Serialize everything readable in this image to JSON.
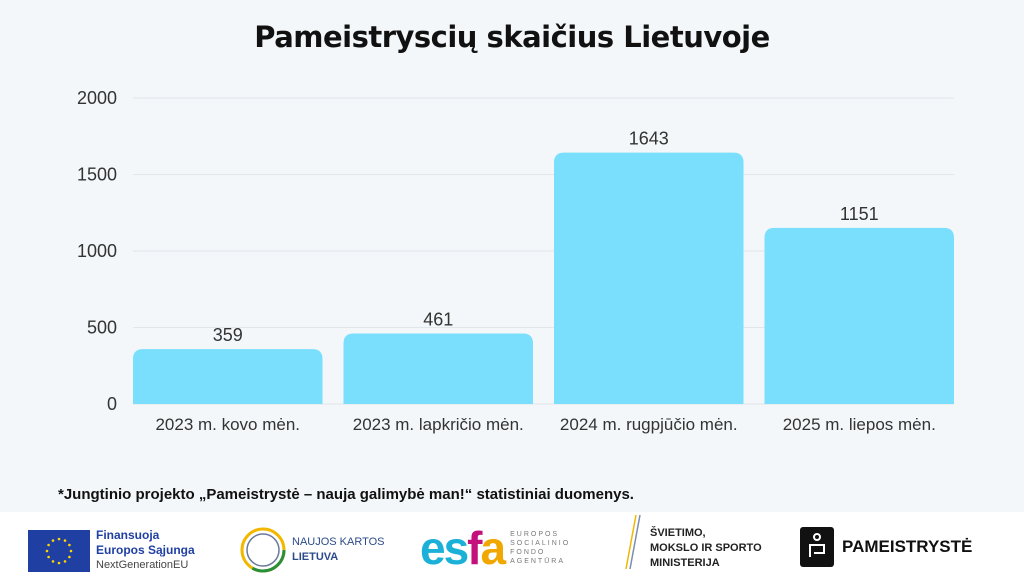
{
  "chart_data": {
    "type": "bar",
    "title": "Pameistryscių skaičius Lietuvoje",
    "categories": [
      "2023 m. kovo mėn.",
      "2023 m. lapkričio mėn.",
      "2024 m. rugpjūčio mėn.",
      "2025 m. liepos mėn."
    ],
    "values": [
      359,
      461,
      1643,
      1151
    ],
    "ylim": [
      0,
      2000
    ],
    "yticks": [
      0,
      500,
      1000,
      1500,
      2000
    ],
    "xlabel": "",
    "ylabel": "",
    "grid": true,
    "bar_color": "#79dffd"
  },
  "note": "*Jungtinio projekto „Pameistrystė – nauja galimybė man!“ statistiniai duomenys.",
  "logos": {
    "eu": {
      "line1": "Finansuoja",
      "line2": "Europos Sąjunga",
      "line3": "NextGenerationEU"
    },
    "nkl": {
      "line1": "NAUJOS KARTOS",
      "line2": "LIETUVA"
    },
    "esfa": {
      "mark": "esfa",
      "line1": "EUROPOS",
      "line2": "SOCIALINIO",
      "line3": "FONDO",
      "line4": "AGENTŪRA"
    },
    "smsm": {
      "line1": "ŠVIETIMO,",
      "line2": "MOKSLO IR SPORTO",
      "line3": "MINISTERIJA"
    },
    "pam": {
      "name": "PAMEISTRYSTĖ"
    }
  }
}
